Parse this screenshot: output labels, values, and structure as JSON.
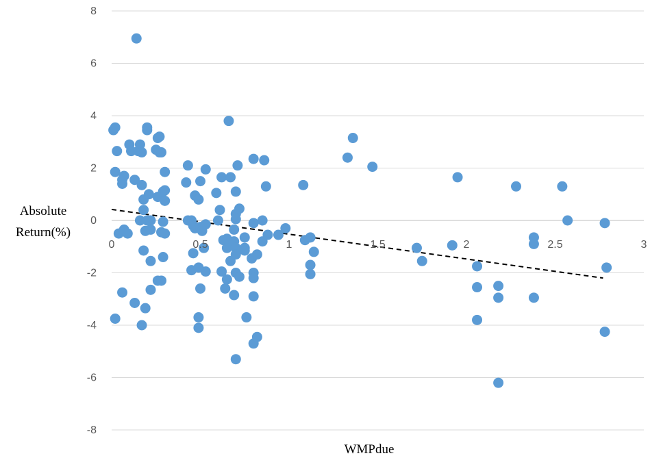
{
  "chart_data": {
    "type": "scatter",
    "title": "",
    "xlabel": "WMPdue",
    "ylabel_lines": [
      "Absolute",
      "Return(%)"
    ],
    "xlim": [
      0,
      3
    ],
    "ylim": [
      -8,
      8
    ],
    "xticks": [
      {
        "value": 0,
        "label": "0"
      },
      {
        "value": 0.5,
        "label": "0.5"
      },
      {
        "value": 1,
        "label": "1"
      },
      {
        "value": 1.5,
        "label": "1.5"
      },
      {
        "value": 2,
        "label": "2"
      },
      {
        "value": 2.5,
        "label": "2.5"
      },
      {
        "value": 3,
        "label": "3"
      }
    ],
    "yticks": [
      {
        "value": -8,
        "label": "-8"
      },
      {
        "value": -6,
        "label": "-6"
      },
      {
        "value": -4,
        "label": "-4"
      },
      {
        "value": -2,
        "label": "-2"
      },
      {
        "value": 0,
        "label": "0"
      },
      {
        "value": 2,
        "label": "2"
      },
      {
        "value": 4,
        "label": "4"
      },
      {
        "value": 6,
        "label": "6"
      },
      {
        "value": 8,
        "label": "8"
      }
    ],
    "grid": {
      "horizontal": true,
      "vertical": false
    },
    "legend": "none",
    "colors": {
      "points": "#5B9BD5",
      "trendline": "#000000",
      "gridlines": "#D9D9D9",
      "axis": "#BFBFBF"
    },
    "trendline": {
      "style": "dashed",
      "x": [
        0,
        2.77
      ],
      "y": [
        0.42,
        -2.2
      ]
    },
    "series": [
      {
        "points": [
          [
            0.01,
            3.45
          ],
          [
            0.02,
            3.55
          ],
          [
            0.02,
            1.85
          ],
          [
            0.02,
            -3.75
          ],
          [
            0.03,
            2.65
          ],
          [
            0.04,
            -0.5
          ],
          [
            0.06,
            1.4
          ],
          [
            0.06,
            1.55
          ],
          [
            0.07,
            1.7
          ],
          [
            0.06,
            -2.75
          ],
          [
            0.07,
            -0.35
          ],
          [
            0.09,
            -0.5
          ],
          [
            0.1,
            2.9
          ],
          [
            0.11,
            2.65
          ],
          [
            0.13,
            1.55
          ],
          [
            0.14,
            6.95
          ],
          [
            0.15,
            2.65
          ],
          [
            0.16,
            2.9
          ],
          [
            0.17,
            2.6
          ],
          [
            0.17,
            1.35
          ],
          [
            0.18,
            0.4
          ],
          [
            0.18,
            0.8
          ],
          [
            0.18,
            -1.15
          ],
          [
            0.19,
            -0.4
          ],
          [
            0.2,
            3.45
          ],
          [
            0.2,
            3.55
          ],
          [
            0.21,
            1.0
          ],
          [
            0.22,
            0.0
          ],
          [
            0.22,
            -0.35
          ],
          [
            0.13,
            -3.15
          ],
          [
            0.17,
            -4.0
          ],
          [
            0.19,
            -3.35
          ],
          [
            0.2,
            -0.0
          ],
          [
            0.22,
            -1.55
          ],
          [
            0.22,
            -2.65
          ],
          [
            0.25,
            2.7
          ],
          [
            0.26,
            3.15
          ],
          [
            0.27,
            3.2
          ],
          [
            0.27,
            2.6
          ],
          [
            0.28,
            2.6
          ],
          [
            0.26,
            0.9
          ],
          [
            0.29,
            1.1
          ],
          [
            0.3,
            1.15
          ],
          [
            0.3,
            1.85
          ],
          [
            0.3,
            0.75
          ],
          [
            0.29,
            -0.05
          ],
          [
            0.28,
            -0.45
          ],
          [
            0.3,
            -0.5
          ],
          [
            0.29,
            -1.4
          ],
          [
            0.26,
            -2.3
          ],
          [
            0.28,
            -2.3
          ],
          [
            0.16,
            0.0
          ],
          [
            0.42,
            1.45
          ],
          [
            0.43,
            2.1
          ],
          [
            0.43,
            0.0
          ],
          [
            0.45,
            -0.0
          ],
          [
            0.46,
            -0.2
          ],
          [
            0.47,
            0.95
          ],
          [
            0.47,
            -0.3
          ],
          [
            0.46,
            -1.25
          ],
          [
            0.45,
            -1.9
          ],
          [
            0.49,
            0.8
          ],
          [
            0.5,
            1.5
          ],
          [
            0.5,
            -0.25
          ],
          [
            0.51,
            -0.4
          ],
          [
            0.52,
            -1.05
          ],
          [
            0.53,
            1.95
          ],
          [
            0.53,
            -0.15
          ],
          [
            0.53,
            -1.95
          ],
          [
            0.49,
            -1.8
          ],
          [
            0.5,
            -2.6
          ],
          [
            0.49,
            -3.7
          ],
          [
            0.49,
            -4.1
          ],
          [
            0.59,
            1.05
          ],
          [
            0.6,
            0.0
          ],
          [
            0.61,
            0.4
          ],
          [
            0.62,
            1.65
          ],
          [
            0.63,
            -0.75
          ],
          [
            0.65,
            -0.7
          ],
          [
            0.65,
            -1.05
          ],
          [
            0.62,
            -1.95
          ],
          [
            0.64,
            -2.6
          ],
          [
            0.65,
            -2.25
          ],
          [
            0.66,
            3.8
          ],
          [
            0.67,
            1.65
          ],
          [
            0.67,
            -1.55
          ],
          [
            0.69,
            -0.35
          ],
          [
            0.69,
            -0.8
          ],
          [
            0.7,
            1.1
          ],
          [
            0.7,
            0.25
          ],
          [
            0.7,
            0.05
          ],
          [
            0.7,
            -1.05
          ],
          [
            0.7,
            -1.3
          ],
          [
            0.7,
            -2.0
          ],
          [
            0.69,
            -2.85
          ],
          [
            0.7,
            -5.3
          ],
          [
            0.71,
            2.1
          ],
          [
            0.72,
            0.45
          ],
          [
            0.72,
            -2.15
          ],
          [
            0.75,
            -0.65
          ],
          [
            0.75,
            -1.05
          ],
          [
            0.75,
            -1.15
          ],
          [
            0.76,
            -3.7
          ],
          [
            0.8,
            2.35
          ],
          [
            0.8,
            -0.1
          ],
          [
            0.79,
            -1.45
          ],
          [
            0.8,
            -2.0
          ],
          [
            0.8,
            -2.2
          ],
          [
            0.8,
            -2.9
          ],
          [
            0.8,
            -4.7
          ],
          [
            0.82,
            -1.3
          ],
          [
            0.82,
            -4.45
          ],
          [
            0.85,
            0.0
          ],
          [
            0.85,
            -0.8
          ],
          [
            0.86,
            2.3
          ],
          [
            0.87,
            1.3
          ],
          [
            0.88,
            -0.55
          ],
          [
            0.94,
            -0.55
          ],
          [
            0.98,
            -0.3
          ],
          [
            1.08,
            1.35
          ],
          [
            1.09,
            -0.75
          ],
          [
            1.12,
            -0.65
          ],
          [
            1.12,
            -1.7
          ],
          [
            1.12,
            -2.05
          ],
          [
            1.14,
            -1.2
          ],
          [
            1.33,
            2.4
          ],
          [
            1.36,
            3.15
          ],
          [
            1.47,
            2.05
          ],
          [
            1.72,
            -1.05
          ],
          [
            1.75,
            -1.55
          ],
          [
            1.92,
            -0.95
          ],
          [
            1.95,
            1.65
          ],
          [
            2.06,
            -1.75
          ],
          [
            2.06,
            -2.55
          ],
          [
            2.06,
            -3.8
          ],
          [
            2.18,
            -2.5
          ],
          [
            2.18,
            -2.95
          ],
          [
            2.18,
            -6.2
          ],
          [
            2.28,
            1.3
          ],
          [
            2.38,
            -0.65
          ],
          [
            2.38,
            -0.9
          ],
          [
            2.38,
            -2.95
          ],
          [
            2.54,
            1.3
          ],
          [
            2.57,
            0.0
          ],
          [
            2.78,
            -0.1
          ],
          [
            2.79,
            -1.8
          ],
          [
            2.78,
            -4.25
          ]
        ]
      }
    ]
  }
}
